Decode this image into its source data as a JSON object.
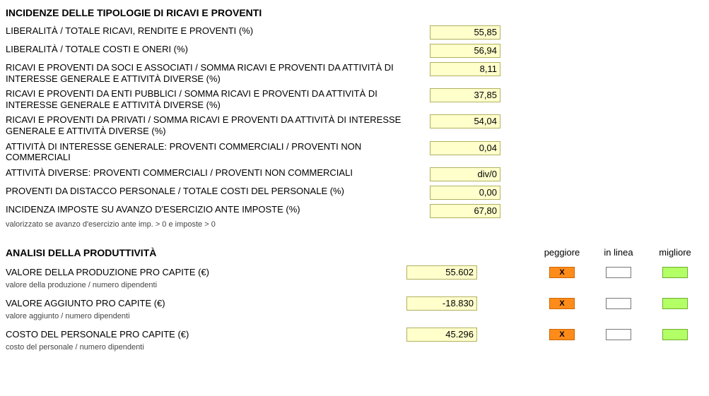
{
  "section1": {
    "title": "INCIDENZE DELLE TIPOLOGIE DI RICAVI E PROVENTI",
    "rows": [
      {
        "label": "LIBERALITÀ / TOTALE RICAVI, RENDITE E PROVENTI (%)",
        "value": "55,85"
      },
      {
        "label": "LIBERALITÀ / TOTALE COSTI E ONERI (%)",
        "value": "56,94"
      },
      {
        "label": "RICAVI E PROVENTI DA SOCI E ASSOCIATI / SOMMA RICAVI E PROVENTI DA ATTIVITÀ DI INTERESSE GENERALE E ATTIVITÀ DIVERSE (%)",
        "value": "8,11"
      },
      {
        "label": "RICAVI E PROVENTI DA ENTI PUBBLICI / SOMMA RICAVI E PROVENTI DA ATTIVITÀ DI INTERESSE GENERALE E ATTIVITÀ DIVERSE (%)",
        "value": "37,85"
      },
      {
        "label": "RICAVI E PROVENTI DA PRIVATI / SOMMA RICAVI E PROVENTI DA ATTIVITÀ DI INTERESSE GENERALE E ATTIVITÀ DIVERSE (%)",
        "value": "54,04"
      },
      {
        "label": "ATTIVITÀ DI INTERESSE GENERALE: PROVENTI COMMERCIALI / PROVENTI NON COMMERCIALI",
        "value": "0,04"
      },
      {
        "label": "ATTIVITÀ DIVERSE: PROVENTI COMMERCIALI / PROVENTI NON COMMERCIALI",
        "value": "div/0"
      },
      {
        "label": "PROVENTI DA DISTACCO PERSONALE / TOTALE COSTI DEL PERSONALE (%)",
        "value": "0,00"
      },
      {
        "label": "INCIDENZA IMPOSTE SU AVANZO D'ESERCIZIO ANTE IMPOSTE (%)",
        "value": "67,80",
        "note": "valorizzato se avanzo d'esercizio ante imp. > 0 e imposte > 0"
      }
    ]
  },
  "section2": {
    "title": "ANALISI DELLA PRODUTTIVITÀ",
    "headers": {
      "peggiore": "peggiore",
      "inlinea": "in linea",
      "migliore": "migliore"
    },
    "rows": [
      {
        "label": "VALORE DELLA PRODUZIONE PRO CAPITE (€)",
        "sub": "valore della produzione / numero dipendenti",
        "value": "55.602",
        "mark": "peggiore"
      },
      {
        "label": "VALORE AGGIUNTO PRO CAPITE (€)",
        "sub": "valore aggiunto / numero dipendenti",
        "value": "-18.830",
        "mark": "peggiore"
      },
      {
        "label": "COSTO DEL PERSONALE PRO CAPITE (€)",
        "sub": "costo del personale / numero dipendenti",
        "value": "45.296",
        "mark": "peggiore"
      }
    ],
    "mark_glyph": "X"
  },
  "colors": {
    "value_bg": "#ffffcc",
    "value_border": "#b0b060",
    "peggiore_bg": "#ff8c1a",
    "inlinea_bg": "#ffffff",
    "migliore_bg": "#b3ff66"
  }
}
